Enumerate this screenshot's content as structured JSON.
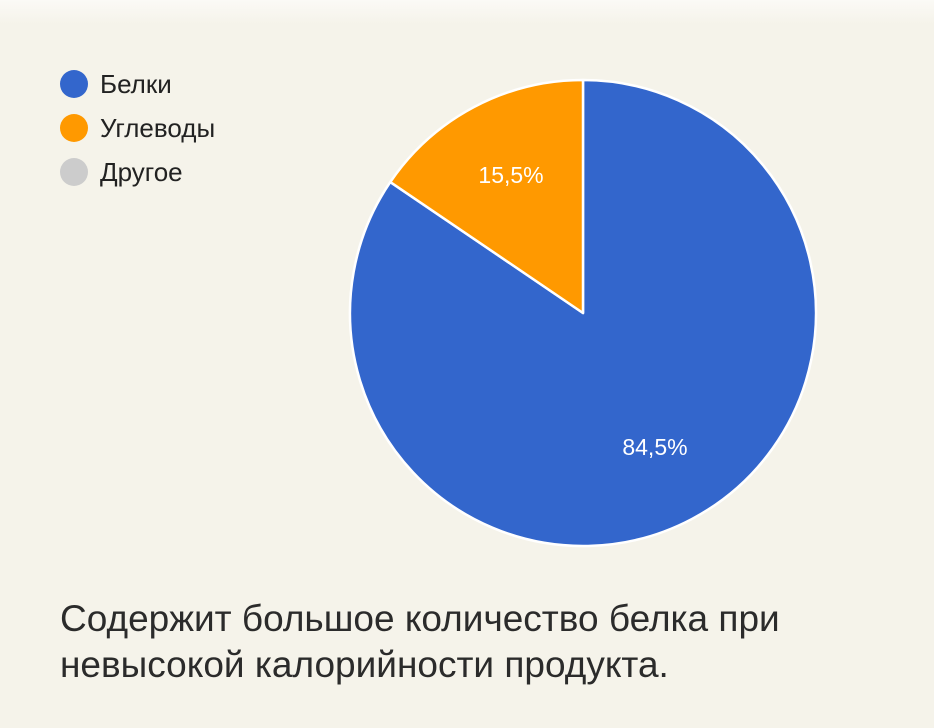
{
  "chart_data": {
    "type": "pie",
    "categories": [
      "Белки",
      "Углеводы",
      "Другое"
    ],
    "values": [
      84.5,
      15.5,
      0
    ],
    "data_labels": [
      "84,5%",
      "15,5%",
      ""
    ],
    "colors": [
      "#3366cc",
      "#ff9900",
      "#cccccc"
    ],
    "legend_position": "top-left"
  },
  "caption": "Содержит большое количество белка при невысокой калорийности продукта."
}
